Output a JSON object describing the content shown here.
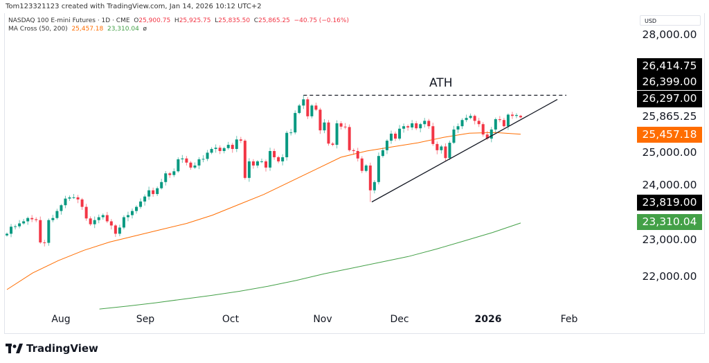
{
  "credit": "Tom123321123 created with TradingView.com, Jan 14, 2026 10:12 UTC+2",
  "legend": {
    "symbol": "NASDAQ 100 E-mini Futures · 1D · CME",
    "o_label": "O",
    "o": "25,900.75",
    "h_label": "H",
    "h": "25,925.75",
    "l_label": "L",
    "l": "25,835.50",
    "c_label": "C",
    "c": "25,865.25",
    "change": "−40.75 (−0.16%)",
    "ma_name": "MA Cross (50, 200)",
    "ma_fast": "25,457.18",
    "ma_slow": "23,310.04",
    "ma_icon": "ø"
  },
  "currency": "USD",
  "annotation": "ATH",
  "logo_text": "TradingView",
  "price_labels": {
    "tick_28000": "28,000.00",
    "ath_high": "26,414.75",
    "ath": "26,399.00",
    "trend_end": "26,297.00",
    "last": "25,865.25",
    "ma50": "25,457.18",
    "tick_25000": "25,000.00",
    "tick_24000": "24,000.00",
    "swing_low": "23,819.00",
    "ma200": "23,310.04",
    "tick_23000": "23,000.00",
    "tick_22000": "22,000.00"
  },
  "time_labels": [
    "Aug",
    "Sep",
    "Oct",
    "Nov",
    "Dec",
    "2026",
    "Feb"
  ],
  "colors": {
    "up": "#089981",
    "down": "#f23645",
    "ma50": "#ff6d00",
    "ma200": "#43a047",
    "drawing": "#131722"
  },
  "chart_data": {
    "type": "candlestick",
    "title": "NASDAQ 100 E-mini Futures · 1D · CME",
    "ylim": [
      21500,
      28000
    ],
    "yticks": [
      22000,
      23000,
      24000,
      25000,
      26000,
      27000,
      28000
    ],
    "xticks": [
      "Aug",
      "Sep",
      "Oct",
      "Nov",
      "Dec",
      "2026",
      "Feb"
    ],
    "closes": [
      23050,
      23220,
      23230,
      23300,
      23350,
      23430,
      23400,
      23380,
      22840,
      22830,
      23380,
      23430,
      23600,
      23740,
      23900,
      23930,
      23930,
      23880,
      23700,
      23420,
      23280,
      23380,
      23450,
      23500,
      23350,
      23250,
      23050,
      23200,
      23450,
      23500,
      23600,
      23700,
      23830,
      23950,
      24100,
      24010,
      24150,
      24300,
      24510,
      24470,
      24560,
      24850,
      24870,
      24770,
      24650,
      24700,
      24850,
      24860,
      25010,
      25100,
      25130,
      25050,
      25120,
      25200,
      25100,
      25330,
      25300,
      24400,
      24800,
      24700,
      24800,
      24800,
      24650,
      25050,
      24900,
      24800,
      24900,
      25490,
      25500,
      25970,
      26150,
      26300,
      25890,
      26150,
      26050,
      25550,
      25740,
      25230,
      25200,
      25720,
      25640,
      25630,
      25070,
      25050,
      24870,
      24570,
      24700,
      24100,
      24300,
      24930,
      25070,
      25300,
      25470,
      25350,
      25590,
      25650,
      25620,
      25720,
      25600,
      25700,
      25780,
      25650,
      25220,
      25070,
      25160,
      24880,
      25250,
      25570,
      25650,
      25800,
      25850,
      25900,
      25780,
      25700,
      25450,
      25350,
      25570,
      25820,
      25800,
      25650,
      25930,
      25900,
      25920,
      25865.25
    ],
    "last_bar": {
      "open": 25900.75,
      "high": 25925.75,
      "low": 25835.5,
      "close": 25865.25
    },
    "ma50_samples": [
      21700,
      22100,
      22400,
      22650,
      22850,
      23000,
      23150,
      23300,
      23500,
      23750,
      24000,
      24300,
      24600,
      24900,
      25050,
      25150,
      25250,
      25380,
      25480,
      25500,
      25457.18
    ],
    "ma200_start_fraction": 0.18,
    "ma200_samples": [
      21230,
      21300,
      21380,
      21470,
      21560,
      21660,
      21780,
      21920,
      22080,
      22220,
      22360,
      22500,
      22680,
      22880,
      23080,
      23310.04
    ],
    "ath": 26399,
    "trendline": {
      "from": 23819,
      "to": 26297
    },
    "series": [
      {
        "name": "MA Cross (50, 200)"
      }
    ]
  }
}
